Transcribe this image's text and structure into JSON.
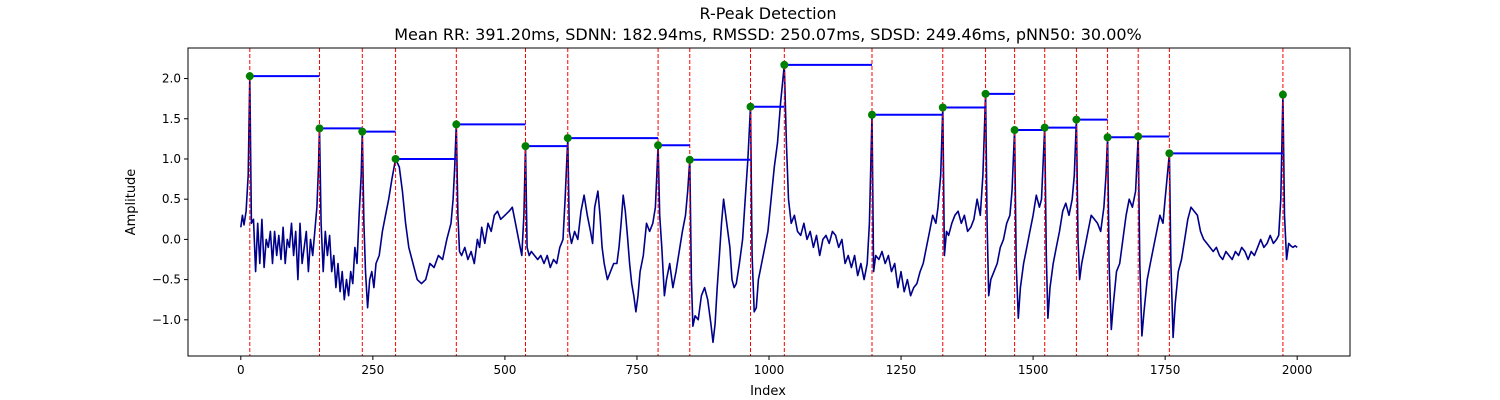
{
  "chart_data": {
    "type": "line",
    "title": "R-Peak Detection",
    "subtitle": "Mean RR: 391.20ms, SDNN: 182.94ms, RMSSD: 250.07ms, SDSD: 249.46ms, pNN50: 30.00%",
    "xlabel": "Index",
    "ylabel": "Amplitude",
    "xlim": [
      -100,
      2100
    ],
    "ylim": [
      -1.45,
      2.38
    ],
    "x_ticks": [
      0,
      250,
      500,
      750,
      1000,
      1250,
      1500,
      1750,
      2000
    ],
    "y_ticks": [
      -1.0,
      -0.5,
      0.0,
      0.5,
      1.0,
      1.5,
      2.0
    ],
    "grid": false,
    "colors": {
      "signal": "#00008b",
      "peak_lines": "#ff0000",
      "peak_markers": "#008000",
      "rr_segments": "#0000ff"
    },
    "peaks": [
      {
        "x": 17,
        "y": 2.03
      },
      {
        "x": 149,
        "y": 1.38
      },
      {
        "x": 230,
        "y": 1.34
      },
      {
        "x": 293,
        "y": 1.0
      },
      {
        "x": 408,
        "y": 1.43
      },
      {
        "x": 539,
        "y": 1.16
      },
      {
        "x": 619,
        "y": 1.26
      },
      {
        "x": 790,
        "y": 1.17
      },
      {
        "x": 850,
        "y": 0.99
      },
      {
        "x": 965,
        "y": 1.65
      },
      {
        "x": 1029,
        "y": 2.17
      },
      {
        "x": 1195,
        "y": 1.55
      },
      {
        "x": 1329,
        "y": 1.64
      },
      {
        "x": 1410,
        "y": 1.81
      },
      {
        "x": 1465,
        "y": 1.36
      },
      {
        "x": 1522,
        "y": 1.39
      },
      {
        "x": 1582,
        "y": 1.49
      },
      {
        "x": 1641,
        "y": 1.27
      },
      {
        "x": 1699,
        "y": 1.28
      },
      {
        "x": 1758,
        "y": 1.07
      },
      {
        "x": 1973,
        "y": 1.8
      }
    ],
    "signal": [
      [
        0,
        0.15
      ],
      [
        3,
        0.3
      ],
      [
        6,
        0.18
      ],
      [
        10,
        0.35
      ],
      [
        14,
        0.8
      ],
      [
        17,
        2.03
      ],
      [
        20,
        0.2
      ],
      [
        24,
        0.25
      ],
      [
        28,
        -0.4
      ],
      [
        32,
        0.2
      ],
      [
        36,
        -0.3
      ],
      [
        40,
        0.25
      ],
      [
        44,
        -0.35
      ],
      [
        48,
        0.0
      ],
      [
        52,
        -0.1
      ],
      [
        56,
        0.1
      ],
      [
        60,
        -0.3
      ],
      [
        64,
        0.1
      ],
      [
        68,
        -0.2
      ],
      [
        72,
        0.05
      ],
      [
        76,
        -0.25
      ],
      [
        80,
        0.15
      ],
      [
        84,
        -0.3
      ],
      [
        88,
        0.0
      ],
      [
        92,
        -0.1
      ],
      [
        96,
        0.2
      ],
      [
        100,
        -0.2
      ],
      [
        104,
        0.1
      ],
      [
        108,
        -0.5
      ],
      [
        112,
        0.2
      ],
      [
        116,
        -0.3
      ],
      [
        120,
        -0.1
      ],
      [
        124,
        0.1
      ],
      [
        128,
        -0.4
      ],
      [
        132,
        0.0
      ],
      [
        136,
        -0.2
      ],
      [
        140,
        0.1
      ],
      [
        144,
        0.4
      ],
      [
        147,
        0.9
      ],
      [
        149,
        1.38
      ],
      [
        152,
        0.2
      ],
      [
        156,
        -0.4
      ],
      [
        160,
        0.1
      ],
      [
        164,
        -0.2
      ],
      [
        168,
        0.05
      ],
      [
        172,
        -0.4
      ],
      [
        176,
        -0.2
      ],
      [
        180,
        -0.6
      ],
      [
        184,
        -0.3
      ],
      [
        188,
        -0.65
      ],
      [
        192,
        -0.4
      ],
      [
        196,
        -0.75
      ],
      [
        200,
        -0.5
      ],
      [
        204,
        -0.7
      ],
      [
        208,
        -0.4
      ],
      [
        212,
        -0.55
      ],
      [
        216,
        -0.1
      ],
      [
        220,
        -0.3
      ],
      [
        224,
        0.3
      ],
      [
        228,
        0.8
      ],
      [
        230,
        1.34
      ],
      [
        233,
        0.2
      ],
      [
        236,
        -0.4
      ],
      [
        240,
        -0.85
      ],
      [
        244,
        -0.5
      ],
      [
        248,
        -0.4
      ],
      [
        252,
        -0.6
      ],
      [
        256,
        -0.3
      ],
      [
        262,
        -0.2
      ],
      [
        268,
        0.1
      ],
      [
        274,
        0.3
      ],
      [
        280,
        0.5
      ],
      [
        286,
        0.75
      ],
      [
        293,
        1.0
      ],
      [
        300,
        0.9
      ],
      [
        306,
        0.6
      ],
      [
        312,
        0.2
      ],
      [
        318,
        -0.1
      ],
      [
        326,
        -0.3
      ],
      [
        334,
        -0.5
      ],
      [
        342,
        -0.55
      ],
      [
        350,
        -0.5
      ],
      [
        358,
        -0.3
      ],
      [
        366,
        -0.35
      ],
      [
        374,
        -0.2
      ],
      [
        382,
        -0.25
      ],
      [
        390,
        0.0
      ],
      [
        398,
        0.2
      ],
      [
        402,
        0.5
      ],
      [
        405,
        0.9
      ],
      [
        408,
        1.43
      ],
      [
        411,
        0.3
      ],
      [
        414,
        -0.15
      ],
      [
        418,
        -0.2
      ],
      [
        424,
        -0.1
      ],
      [
        430,
        -0.25
      ],
      [
        436,
        -0.15
      ],
      [
        442,
        -0.3
      ],
      [
        448,
        0.0
      ],
      [
        452,
        -0.1
      ],
      [
        456,
        0.15
      ],
      [
        462,
        -0.05
      ],
      [
        468,
        0.2
      ],
      [
        474,
        0.1
      ],
      [
        480,
        0.3
      ],
      [
        486,
        0.35
      ],
      [
        492,
        0.25
      ],
      [
        500,
        0.3
      ],
      [
        508,
        0.35
      ],
      [
        514,
        0.4
      ],
      [
        520,
        0.2
      ],
      [
        526,
        0.0
      ],
      [
        532,
        -0.2
      ],
      [
        536,
        0.3
      ],
      [
        539,
        1.16
      ],
      [
        542,
        -0.1
      ],
      [
        546,
        -0.2
      ],
      [
        550,
        -0.15
      ],
      [
        556,
        -0.2
      ],
      [
        562,
        -0.25
      ],
      [
        568,
        -0.2
      ],
      [
        574,
        -0.3
      ],
      [
        580,
        -0.2
      ],
      [
        586,
        -0.35
      ],
      [
        592,
        -0.25
      ],
      [
        598,
        -0.3
      ],
      [
        604,
        -0.1
      ],
      [
        610,
        0.0
      ],
      [
        614,
        0.5
      ],
      [
        619,
        1.26
      ],
      [
        622,
        0.1
      ],
      [
        626,
        -0.05
      ],
      [
        632,
        0.1
      ],
      [
        638,
        0.0
      ],
      [
        644,
        0.35
      ],
      [
        650,
        0.55
      ],
      [
        656,
        0.3
      ],
      [
        662,
        0.1
      ],
      [
        666,
        -0.05
      ],
      [
        670,
        0.4
      ],
      [
        676,
        0.6
      ],
      [
        680,
        0.3
      ],
      [
        684,
        -0.1
      ],
      [
        688,
        -0.3
      ],
      [
        694,
        -0.5
      ],
      [
        700,
        -0.4
      ],
      [
        706,
        -0.3
      ],
      [
        712,
        -0.3
      ],
      [
        716,
        -0.1
      ],
      [
        720,
        0.2
      ],
      [
        724,
        0.55
      ],
      [
        728,
        0.35
      ],
      [
        732,
        0.05
      ],
      [
        736,
        -0.3
      ],
      [
        740,
        -0.55
      ],
      [
        744,
        -0.7
      ],
      [
        748,
        -0.9
      ],
      [
        752,
        -0.7
      ],
      [
        756,
        -0.4
      ],
      [
        762,
        -0.2
      ],
      [
        768,
        0.2
      ],
      [
        774,
        0.1
      ],
      [
        780,
        0.2
      ],
      [
        785,
        0.4
      ],
      [
        790,
        1.17
      ],
      [
        793,
        0.3
      ],
      [
        797,
        -0.1
      ],
      [
        802,
        -0.7
      ],
      [
        806,
        -0.5
      ],
      [
        812,
        -0.3
      ],
      [
        818,
        -0.6
      ],
      [
        824,
        -0.4
      ],
      [
        830,
        -0.15
      ],
      [
        836,
        0.1
      ],
      [
        842,
        0.3
      ],
      [
        846,
        0.6
      ],
      [
        850,
        0.99
      ],
      [
        853,
        -0.5
      ],
      [
        856,
        -1.08
      ],
      [
        860,
        -0.95
      ],
      [
        866,
        -1.0
      ],
      [
        872,
        -0.7
      ],
      [
        878,
        -0.6
      ],
      [
        884,
        -0.75
      ],
      [
        890,
        -1.05
      ],
      [
        894,
        -1.28
      ],
      [
        898,
        -1.05
      ],
      [
        902,
        -0.6
      ],
      [
        906,
        -0.2
      ],
      [
        910,
        0.2
      ],
      [
        914,
        0.5
      ],
      [
        918,
        0.3
      ],
      [
        922,
        0.1
      ],
      [
        926,
        -0.1
      ],
      [
        930,
        -0.5
      ],
      [
        934,
        -0.6
      ],
      [
        938,
        -0.55
      ],
      [
        944,
        -0.3
      ],
      [
        950,
        0.0
      ],
      [
        955,
        0.5
      ],
      [
        960,
        1.0
      ],
      [
        965,
        1.65
      ],
      [
        968,
        -0.2
      ],
      [
        972,
        -0.9
      ],
      [
        976,
        -0.85
      ],
      [
        980,
        -0.5
      ],
      [
        986,
        -0.3
      ],
      [
        992,
        -0.1
      ],
      [
        998,
        0.1
      ],
      [
        1004,
        0.5
      ],
      [
        1010,
        0.9
      ],
      [
        1016,
        1.2
      ],
      [
        1022,
        1.7
      ],
      [
        1029,
        2.17
      ],
      [
        1033,
        1.2
      ],
      [
        1037,
        0.5
      ],
      [
        1042,
        0.2
      ],
      [
        1048,
        0.3
      ],
      [
        1054,
        0.1
      ],
      [
        1060,
        0.05
      ],
      [
        1066,
        0.2
      ],
      [
        1072,
        0.0
      ],
      [
        1078,
        0.1
      ],
      [
        1084,
        -0.1
      ],
      [
        1090,
        0.05
      ],
      [
        1096,
        -0.2
      ],
      [
        1102,
        0.0
      ],
      [
        1108,
        0.05
      ],
      [
        1114,
        -0.05
      ],
      [
        1120,
        0.1
      ],
      [
        1126,
        0.05
      ],
      [
        1132,
        -0.1
      ],
      [
        1138,
        0.0
      ],
      [
        1144,
        -0.3
      ],
      [
        1150,
        -0.2
      ],
      [
        1156,
        -0.35
      ],
      [
        1162,
        -0.2
      ],
      [
        1168,
        -0.45
      ],
      [
        1174,
        -0.3
      ],
      [
        1180,
        -0.5
      ],
      [
        1186,
        -0.3
      ],
      [
        1190,
        0.2
      ],
      [
        1195,
        1.55
      ],
      [
        1198,
        -0.4
      ],
      [
        1202,
        -0.2
      ],
      [
        1208,
        -0.25
      ],
      [
        1214,
        -0.15
      ],
      [
        1220,
        -0.3
      ],
      [
        1226,
        -0.2
      ],
      [
        1232,
        -0.4
      ],
      [
        1238,
        -0.3
      ],
      [
        1244,
        -0.6
      ],
      [
        1250,
        -0.4
      ],
      [
        1256,
        -0.65
      ],
      [
        1262,
        -0.5
      ],
      [
        1268,
        -0.7
      ],
      [
        1274,
        -0.6
      ],
      [
        1280,
        -0.55
      ],
      [
        1286,
        -0.4
      ],
      [
        1292,
        -0.3
      ],
      [
        1298,
        -0.1
      ],
      [
        1304,
        0.1
      ],
      [
        1310,
        0.3
      ],
      [
        1316,
        0.2
      ],
      [
        1320,
        0.4
      ],
      [
        1325,
        0.8
      ],
      [
        1329,
        1.64
      ],
      [
        1332,
        -0.2
      ],
      [
        1336,
        0.1
      ],
      [
        1340,
        0.05
      ],
      [
        1346,
        0.2
      ],
      [
        1352,
        0.3
      ],
      [
        1358,
        0.35
      ],
      [
        1364,
        0.2
      ],
      [
        1370,
        0.3
      ],
      [
        1376,
        0.1
      ],
      [
        1382,
        0.15
      ],
      [
        1388,
        0.25
      ],
      [
        1394,
        0.5
      ],
      [
        1400,
        0.3
      ],
      [
        1405,
        0.8
      ],
      [
        1410,
        1.81
      ],
      [
        1413,
        0.2
      ],
      [
        1416,
        -0.7
      ],
      [
        1420,
        -0.5
      ],
      [
        1426,
        -0.4
      ],
      [
        1432,
        -0.3
      ],
      [
        1438,
        -0.1
      ],
      [
        1444,
        0.0
      ],
      [
        1450,
        0.2
      ],
      [
        1456,
        0.3
      ],
      [
        1460,
        0.6
      ],
      [
        1465,
        1.36
      ],
      [
        1468,
        -0.3
      ],
      [
        1472,
        -0.98
      ],
      [
        1476,
        -0.6
      ],
      [
        1482,
        -0.3
      ],
      [
        1488,
        -0.1
      ],
      [
        1494,
        0.1
      ],
      [
        1500,
        0.3
      ],
      [
        1506,
        0.55
      ],
      [
        1512,
        0.4
      ],
      [
        1516,
        0.5
      ],
      [
        1522,
        1.39
      ],
      [
        1525,
        -0.2
      ],
      [
        1528,
        -0.98
      ],
      [
        1532,
        -0.6
      ],
      [
        1538,
        -0.3
      ],
      [
        1544,
        -0.1
      ],
      [
        1550,
        0.1
      ],
      [
        1556,
        0.35
      ],
      [
        1562,
        0.45
      ],
      [
        1568,
        0.3
      ],
      [
        1574,
        0.5
      ],
      [
        1578,
        0.8
      ],
      [
        1582,
        1.49
      ],
      [
        1585,
        0.0
      ],
      [
        1588,
        -0.5
      ],
      [
        1592,
        -0.3
      ],
      [
        1598,
        -0.1
      ],
      [
        1604,
        0.1
      ],
      [
        1610,
        0.3
      ],
      [
        1616,
        0.25
      ],
      [
        1622,
        0.2
      ],
      [
        1628,
        0.1
      ],
      [
        1634,
        0.4
      ],
      [
        1638,
        0.8
      ],
      [
        1641,
        1.27
      ],
      [
        1644,
        -0.3
      ],
      [
        1648,
        -1.12
      ],
      [
        1652,
        -0.8
      ],
      [
        1658,
        -0.4
      ],
      [
        1664,
        -0.3
      ],
      [
        1670,
        0.0
      ],
      [
        1676,
        0.3
      ],
      [
        1682,
        0.5
      ],
      [
        1688,
        0.4
      ],
      [
        1694,
        0.6
      ],
      [
        1699,
        1.28
      ],
      [
        1702,
        -0.3
      ],
      [
        1706,
        -1.2
      ],
      [
        1710,
        -0.9
      ],
      [
        1716,
        -0.5
      ],
      [
        1722,
        -0.3
      ],
      [
        1728,
        -0.1
      ],
      [
        1734,
        0.1
      ],
      [
        1740,
        0.3
      ],
      [
        1746,
        0.2
      ],
      [
        1750,
        0.5
      ],
      [
        1758,
        1.07
      ],
      [
        1761,
        -0.3
      ],
      [
        1765,
        -1.22
      ],
      [
        1769,
        -0.8
      ],
      [
        1775,
        -0.4
      ],
      [
        1781,
        -0.25
      ],
      [
        1787,
        0.0
      ],
      [
        1793,
        0.25
      ],
      [
        1799,
        0.4
      ],
      [
        1805,
        0.35
      ],
      [
        1811,
        0.3
      ],
      [
        1817,
        0.1
      ],
      [
        1823,
        0.0
      ],
      [
        1829,
        -0.05
      ],
      [
        1835,
        -0.1
      ],
      [
        1841,
        -0.15
      ],
      [
        1847,
        -0.1
      ],
      [
        1853,
        -0.2
      ],
      [
        1859,
        -0.25
      ],
      [
        1865,
        -0.15
      ],
      [
        1871,
        -0.2
      ],
      [
        1877,
        -0.25
      ],
      [
        1883,
        -0.15
      ],
      [
        1889,
        -0.2
      ],
      [
        1895,
        -0.1
      ],
      [
        1901,
        -0.15
      ],
      [
        1907,
        -0.25
      ],
      [
        1913,
        -0.15
      ],
      [
        1919,
        -0.2
      ],
      [
        1925,
        -0.1
      ],
      [
        1931,
        0.0
      ],
      [
        1937,
        -0.1
      ],
      [
        1943,
        -0.05
      ],
      [
        1949,
        0.05
      ],
      [
        1955,
        -0.05
      ],
      [
        1961,
        0.0
      ],
      [
        1965,
        0.05
      ],
      [
        1969,
        0.5
      ],
      [
        1973,
        1.8
      ],
      [
        1976,
        0.3
      ],
      [
        1980,
        -0.25
      ],
      [
        1984,
        -0.05
      ],
      [
        1988,
        -0.08
      ],
      [
        1992,
        -0.1
      ],
      [
        1996,
        -0.08
      ],
      [
        2000,
        -0.1
      ]
    ]
  }
}
